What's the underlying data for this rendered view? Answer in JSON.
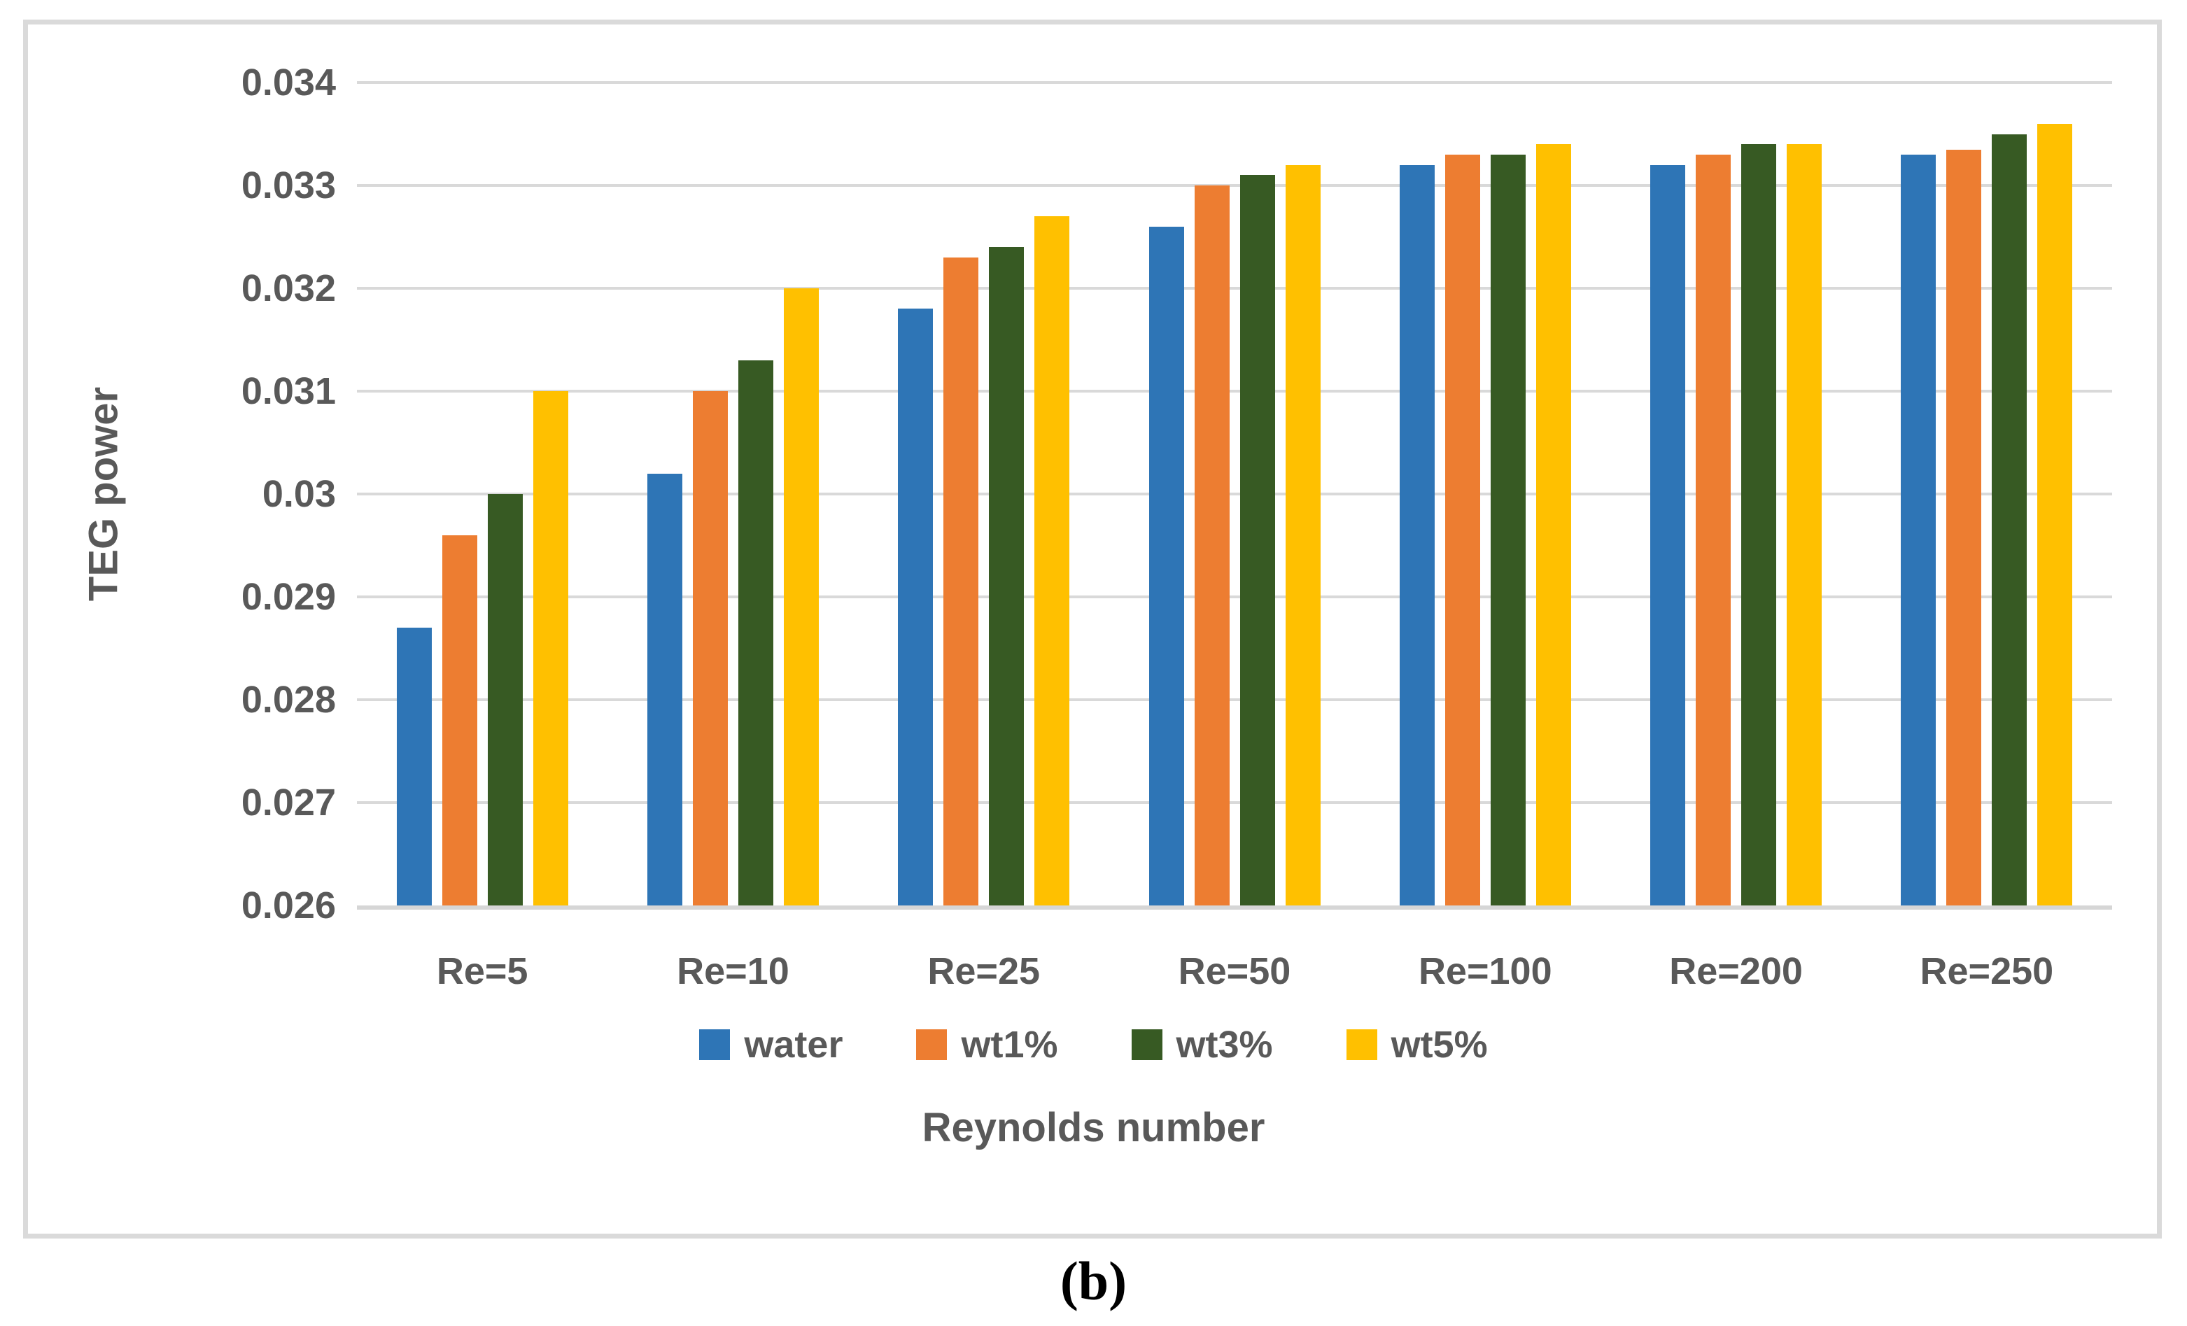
{
  "figure": {
    "caption": "(b)"
  },
  "chart_data": {
    "type": "bar",
    "title": "",
    "xlabel": "Reynolds number",
    "ylabel": "TEG power",
    "categories": [
      "Re=5",
      "Re=10",
      "Re=25",
      "Re=50",
      "Re=100",
      "Re=200",
      "Re=250"
    ],
    "series": [
      {
        "name": "water",
        "color": "#2E75B6",
        "values": [
          0.0287,
          0.0302,
          0.0318,
          0.0326,
          0.0332,
          0.0332,
          0.0333
        ]
      },
      {
        "name": "wt1%",
        "color": "#ED7D31",
        "values": [
          0.0296,
          0.031,
          0.0323,
          0.033,
          0.0333,
          0.0333,
          0.03335
        ]
      },
      {
        "name": "wt3%",
        "color": "#375A23",
        "values": [
          0.03,
          0.0313,
          0.0324,
          0.0331,
          0.0333,
          0.0334,
          0.0335
        ]
      },
      {
        "name": "wt5%",
        "color": "#FFC000",
        "values": [
          0.031,
          0.032,
          0.0327,
          0.0332,
          0.0334,
          0.0334,
          0.0336
        ]
      }
    ],
    "ylim": [
      0.026,
      0.034
    ],
    "ytick_step": 0.001,
    "ytick_labels": [
      "0.034",
      "0.033",
      "0.032",
      "0.031",
      "0.03",
      "0.029",
      "0.028",
      "0.027",
      "0.026"
    ],
    "grid": true,
    "legend_position": "bottom",
    "colors": {
      "gridline": "#D9D9D9",
      "axis_text": "#595959",
      "frame_border": "#DADADA",
      "caption_text": "#000000"
    }
  }
}
